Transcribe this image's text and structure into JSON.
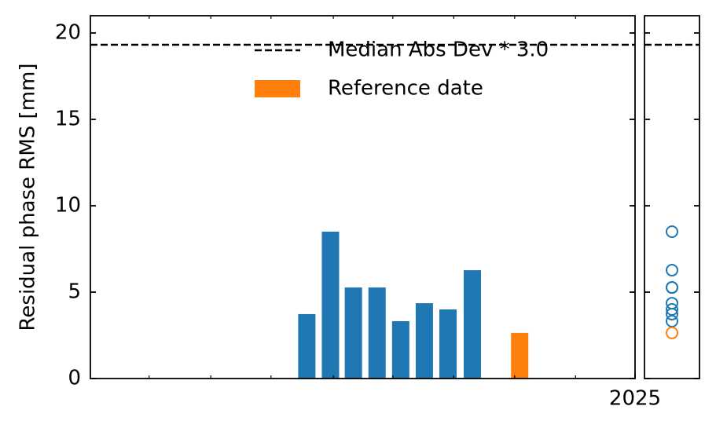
{
  "chart_data": {
    "type": "bar",
    "y_label": "Residual phase RMS [mm]",
    "x": [
      2024.542,
      2024.575,
      2024.607,
      2024.64,
      2024.673,
      2024.706,
      2024.739,
      2024.773
    ],
    "values": [
      3.73,
      8.5,
      5.27,
      5.27,
      3.32,
      4.36,
      4.0,
      6.27
    ],
    "color": "#1f77b4",
    "reference": {
      "name": "Reference date",
      "x": 2024.839,
      "value": 2.64,
      "color": "#ff7f0e"
    },
    "threshold": {
      "name": "Median Abs Dev * 3.0",
      "value": 19.32
    },
    "xlim": [
      2024.24,
      2025.0
    ],
    "xticks": [
      {
        "value": 2025,
        "label": "2025"
      }
    ],
    "xminor_ticks": [
      2024.322,
      2024.408,
      2024.492,
      2024.579,
      2024.662,
      2024.747,
      2024.832,
      2024.917
    ],
    "ylim": [
      0,
      21
    ],
    "yticks": [
      0,
      5,
      10,
      15,
      20
    ]
  }
}
